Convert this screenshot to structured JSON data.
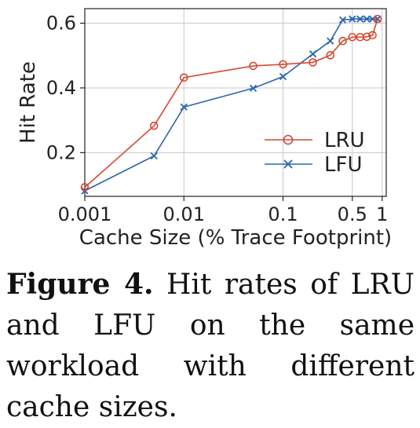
{
  "chart_data": {
    "type": "line",
    "xlabel": "Cache Size (% Trace Footprint)",
    "ylabel": "Hit Rate",
    "xscale": "log",
    "xlim": [
      0.001,
      1.1
    ],
    "ylim": [
      0.065,
      0.645
    ],
    "xticks": [
      0.001,
      0.01,
      0.1,
      0.5,
      1
    ],
    "xtick_labels": [
      "0.001",
      "0.01",
      "0.1",
      "0.5",
      "1"
    ],
    "yticks": [
      0.2,
      0.4,
      0.6
    ],
    "ytick_labels": [
      "0.2",
      "0.4",
      "0.6"
    ],
    "grid": true,
    "legend_position": "lower-right",
    "series": [
      {
        "name": "LRU",
        "color": "#d44a32",
        "marker": "circle",
        "x": [
          0.001,
          0.005,
          0.01,
          0.05,
          0.1,
          0.2,
          0.3,
          0.4,
          0.5,
          0.6,
          0.7,
          0.8,
          0.9
        ],
        "y": [
          0.093,
          0.283,
          0.432,
          0.468,
          0.473,
          0.479,
          0.501,
          0.545,
          0.557,
          0.557,
          0.558,
          0.563,
          0.613
        ]
      },
      {
        "name": "LFU",
        "color": "#2b66ad",
        "marker": "x",
        "x": [
          0.001,
          0.005,
          0.01,
          0.05,
          0.1,
          0.2,
          0.3,
          0.4,
          0.5,
          0.6,
          0.7,
          0.8,
          0.9
        ],
        "y": [
          0.082,
          0.19,
          0.341,
          0.399,
          0.435,
          0.505,
          0.545,
          0.61,
          0.613,
          0.613,
          0.613,
          0.613,
          0.613
        ]
      }
    ]
  },
  "caption": {
    "label": "Figure 4.",
    "text": " Hit rates of LRU and LFU on the same workload with different cache sizes."
  }
}
